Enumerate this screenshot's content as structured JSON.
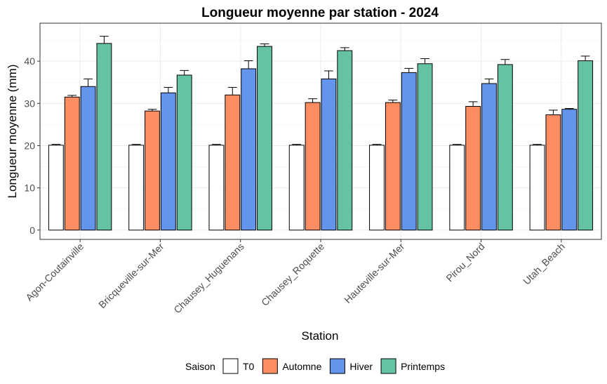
{
  "chart_data": {
    "type": "bar",
    "title": "Longueur moyenne par station - 2024",
    "xlabel": "Station",
    "ylabel": "Longueur moyenne (mm)",
    "ylim": [
      -2.2,
      49
    ],
    "yticks": [
      0,
      10,
      20,
      30,
      40
    ],
    "grid": true,
    "legend_position": "bottom",
    "legend_title": "Saison",
    "categories": [
      "Agon-Coutainville",
      "Bricqueville-sur-Mer",
      "Chausey_Huguenans",
      "Chausey_Roquette",
      "Hauteville-sur-Mer",
      "Pirou_Nord",
      "Utah_Beach"
    ],
    "series": [
      {
        "name": "T0",
        "color": "#ffffff",
        "values": [
          20.1,
          20.1,
          20.1,
          20.1,
          20.1,
          20.1,
          20.1
        ],
        "errors": [
          0.2,
          0.2,
          0.2,
          0.2,
          0.2,
          0.2,
          0.2
        ]
      },
      {
        "name": "Automne",
        "color": "#fc8d62",
        "values": [
          31.5,
          28.2,
          32.0,
          30.2,
          30.2,
          29.3,
          27.3
        ],
        "errors": [
          0.4,
          0.4,
          1.8,
          0.9,
          0.6,
          1.1,
          1.1
        ]
      },
      {
        "name": "Hiver",
        "color": "#6495ed",
        "values": [
          34.0,
          32.5,
          38.2,
          35.8,
          37.3,
          34.7,
          28.6
        ],
        "errors": [
          1.8,
          1.3,
          1.9,
          1.9,
          1.0,
          1.1,
          0.2
        ]
      },
      {
        "name": "Printemps",
        "color": "#66c2a5",
        "values": [
          44.2,
          36.7,
          43.5,
          42.5,
          39.4,
          39.2,
          40.1
        ],
        "errors": [
          1.7,
          1.1,
          0.6,
          0.7,
          1.2,
          1.2,
          1.1
        ]
      }
    ]
  }
}
